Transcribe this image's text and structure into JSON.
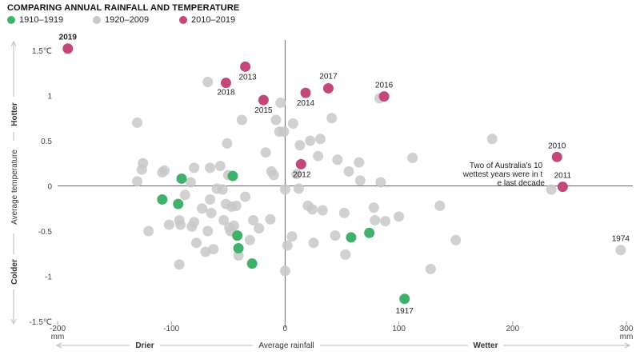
{
  "chart_data": {
    "type": "scatter",
    "title": "COMPARING ANNUAL RAINFALL AND TEMPERATURE",
    "xlabel": "Average rainfall",
    "ylabel": "Average temperature",
    "x_unit": "mm",
    "y_unit": "℃",
    "xlim": [
      -200,
      300
    ],
    "ylim": [
      -1.5,
      1.5
    ],
    "x_ticks": [
      {
        "value": -200,
        "label": "-200"
      },
      {
        "value": -100,
        "label": "-100"
      },
      {
        "value": 0,
        "label": "0"
      },
      {
        "value": 100,
        "label": "100"
      },
      {
        "value": 200,
        "label": "200"
      },
      {
        "value": 300,
        "label": "300"
      }
    ],
    "y_ticks": [
      {
        "value": 1.5,
        "label": "1.5℃"
      },
      {
        "value": 1,
        "label": "1"
      },
      {
        "value": 0.5,
        "label": "0.5"
      },
      {
        "value": 0,
        "label": "0"
      },
      {
        "value": -0.5,
        "label": "-0.5"
      },
      {
        "value": -1,
        "label": "-1"
      },
      {
        "value": -1.5,
        "label": "-1.5℃"
      }
    ],
    "x_direction_labels": {
      "left": "Drier",
      "right": "Wetter"
    },
    "y_direction_labels": {
      "top": "Hotter",
      "bottom": "Colder"
    },
    "annotation": "Two of Australia's 10 wettest years were in the last decade",
    "grid": false,
    "legend_position": "top-left",
    "series": [
      {
        "name": "1920–2009",
        "color": "#c8c8c8",
        "points": [
          {
            "x": -130,
            "y": 0.7
          },
          {
            "x": -125,
            "y": 0.25
          },
          {
            "x": -126,
            "y": 0.18
          },
          {
            "x": -130,
            "y": 0.05
          },
          {
            "x": -120,
            "y": -0.5
          },
          {
            "x": -108,
            "y": 0.15
          },
          {
            "x": -106,
            "y": 0.17
          },
          {
            "x": -102,
            "y": -0.43
          },
          {
            "x": -93,
            "y": -0.38
          },
          {
            "x": -92,
            "y": -0.43
          },
          {
            "x": -93,
            "y": -0.87
          },
          {
            "x": -88,
            "y": -0.1
          },
          {
            "x": -83,
            "y": 0.04
          },
          {
            "x": -82,
            "y": -0.45
          },
          {
            "x": -80,
            "y": 0.2
          },
          {
            "x": -80,
            "y": -0.4
          },
          {
            "x": -78,
            "y": -0.63
          },
          {
            "x": -73,
            "y": -0.25
          },
          {
            "x": -70,
            "y": -0.73
          },
          {
            "x": -68,
            "y": 1.15
          },
          {
            "x": -68,
            "y": -0.5
          },
          {
            "x": -66,
            "y": 0.2
          },
          {
            "x": -66,
            "y": -0.15
          },
          {
            "x": -65,
            "y": -0.3
          },
          {
            "x": -63,
            "y": -0.7
          },
          {
            "x": -60,
            "y": -0.03
          },
          {
            "x": -57,
            "y": 0.22
          },
          {
            "x": -55,
            "y": -0.04
          },
          {
            "x": -54,
            "y": -0.38
          },
          {
            "x": -52,
            "y": -0.2
          },
          {
            "x": -51,
            "y": 0.47
          },
          {
            "x": -50,
            "y": 0.12
          },
          {
            "x": -49,
            "y": -0.46
          },
          {
            "x": -48,
            "y": -0.5
          },
          {
            "x": -47,
            "y": -0.23
          },
          {
            "x": -45,
            "y": -0.44
          },
          {
            "x": -43,
            "y": -0.22
          },
          {
            "x": -41,
            "y": -0.77
          },
          {
            "x": -38,
            "y": 0.73
          },
          {
            "x": -35,
            "y": -0.12
          },
          {
            "x": -31,
            "y": -0.6
          },
          {
            "x": -28,
            "y": -0.38
          },
          {
            "x": -23,
            "y": -0.47
          },
          {
            "x": -17,
            "y": 0.37
          },
          {
            "x": -13,
            "y": -0.37
          },
          {
            "x": -12,
            "y": 0.16
          },
          {
            "x": -10,
            "y": 0.12
          },
          {
            "x": -8,
            "y": 0.73
          },
          {
            "x": -5,
            "y": 0.6
          },
          {
            "x": -4,
            "y": 0.92
          },
          {
            "x": -1,
            "y": 0.6
          },
          {
            "x": 0,
            "y": -0.04
          },
          {
            "x": 0,
            "y": -0.94
          },
          {
            "x": 2,
            "y": -0.66
          },
          {
            "x": 6,
            "y": -0.56
          },
          {
            "x": 7,
            "y": 0.69
          },
          {
            "x": 10,
            "y": 0.13
          },
          {
            "x": 12,
            "y": -0.03
          },
          {
            "x": 13,
            "y": 0.45
          },
          {
            "x": 20,
            "y": -0.22
          },
          {
            "x": 22,
            "y": 0.5
          },
          {
            "x": 24,
            "y": -0.26
          },
          {
            "x": 25,
            "y": -0.63
          },
          {
            "x": 29,
            "y": 0.33
          },
          {
            "x": 31,
            "y": 0.52
          },
          {
            "x": 33,
            "y": -0.27
          },
          {
            "x": 41,
            "y": 0.75
          },
          {
            "x": 44,
            "y": -0.55
          },
          {
            "x": 46,
            "y": 0.29
          },
          {
            "x": 52,
            "y": -0.3
          },
          {
            "x": 53,
            "y": -0.76
          },
          {
            "x": 56,
            "y": 0.16
          },
          {
            "x": 65,
            "y": 0.26
          },
          {
            "x": 66,
            "y": 0.06
          },
          {
            "x": 78,
            "y": -0.24
          },
          {
            "x": 79,
            "y": -0.38
          },
          {
            "x": 83,
            "y": 0.97
          },
          {
            "x": 84,
            "y": 0.04
          },
          {
            "x": 88,
            "y": -0.39
          },
          {
            "x": 100,
            "y": -0.34
          },
          {
            "x": 112,
            "y": 0.31
          },
          {
            "x": 128,
            "y": -0.92
          },
          {
            "x": 136,
            "y": -0.22
          },
          {
            "x": 150,
            "y": -0.6
          },
          {
            "x": 182,
            "y": 0.52
          },
          {
            "x": 234,
            "y": -0.04
          },
          {
            "x": 295,
            "y": -0.71
          }
        ]
      },
      {
        "name": "1910–1919",
        "color": "#3fb16b",
        "points": [
          {
            "x": -108,
            "y": -0.15
          },
          {
            "x": -94,
            "y": -0.2
          },
          {
            "x": -91,
            "y": 0.08
          },
          {
            "x": -46,
            "y": 0.11
          },
          {
            "x": -42,
            "y": -0.55
          },
          {
            "x": -41,
            "y": -0.69
          },
          {
            "x": -29,
            "y": -0.86
          },
          {
            "x": 58,
            "y": -0.57
          },
          {
            "x": 74,
            "y": -0.52
          },
          {
            "x": 105,
            "y": -1.25
          }
        ]
      },
      {
        "name": "2010–2019",
        "color": "#c2487a",
        "points": [
          {
            "x": -191,
            "y": 1.52
          },
          {
            "x": -52,
            "y": 1.14
          },
          {
            "x": -35,
            "y": 1.32
          },
          {
            "x": -19,
            "y": 0.95
          },
          {
            "x": 14,
            "y": 0.24
          },
          {
            "x": 18,
            "y": 1.03
          },
          {
            "x": 38,
            "y": 1.08
          },
          {
            "x": 87,
            "y": 0.99
          },
          {
            "x": 239,
            "y": 0.32
          },
          {
            "x": 244,
            "y": -0.01
          }
        ]
      }
    ],
    "point_labels": [
      {
        "label": "2019",
        "x": -191,
        "y": 1.52,
        "bold": true
      },
      {
        "label": "2018",
        "x": -52,
        "y": 1.14
      },
      {
        "label": "2013",
        "x": -35,
        "y": 1.32
      },
      {
        "label": "2015",
        "x": -19,
        "y": 0.95
      },
      {
        "label": "2012",
        "x": 14,
        "y": 0.24
      },
      {
        "label": "2014",
        "x": 18,
        "y": 1.03
      },
      {
        "label": "2017",
        "x": 38,
        "y": 1.08
      },
      {
        "label": "2016",
        "x": 87,
        "y": 0.99
      },
      {
        "label": "2010",
        "x": 239,
        "y": 0.32
      },
      {
        "label": "2011",
        "x": 244,
        "y": -0.01
      },
      {
        "label": "1917",
        "x": 105,
        "y": -1.25
      },
      {
        "label": "1974",
        "x": 295,
        "y": -0.71
      }
    ]
  }
}
